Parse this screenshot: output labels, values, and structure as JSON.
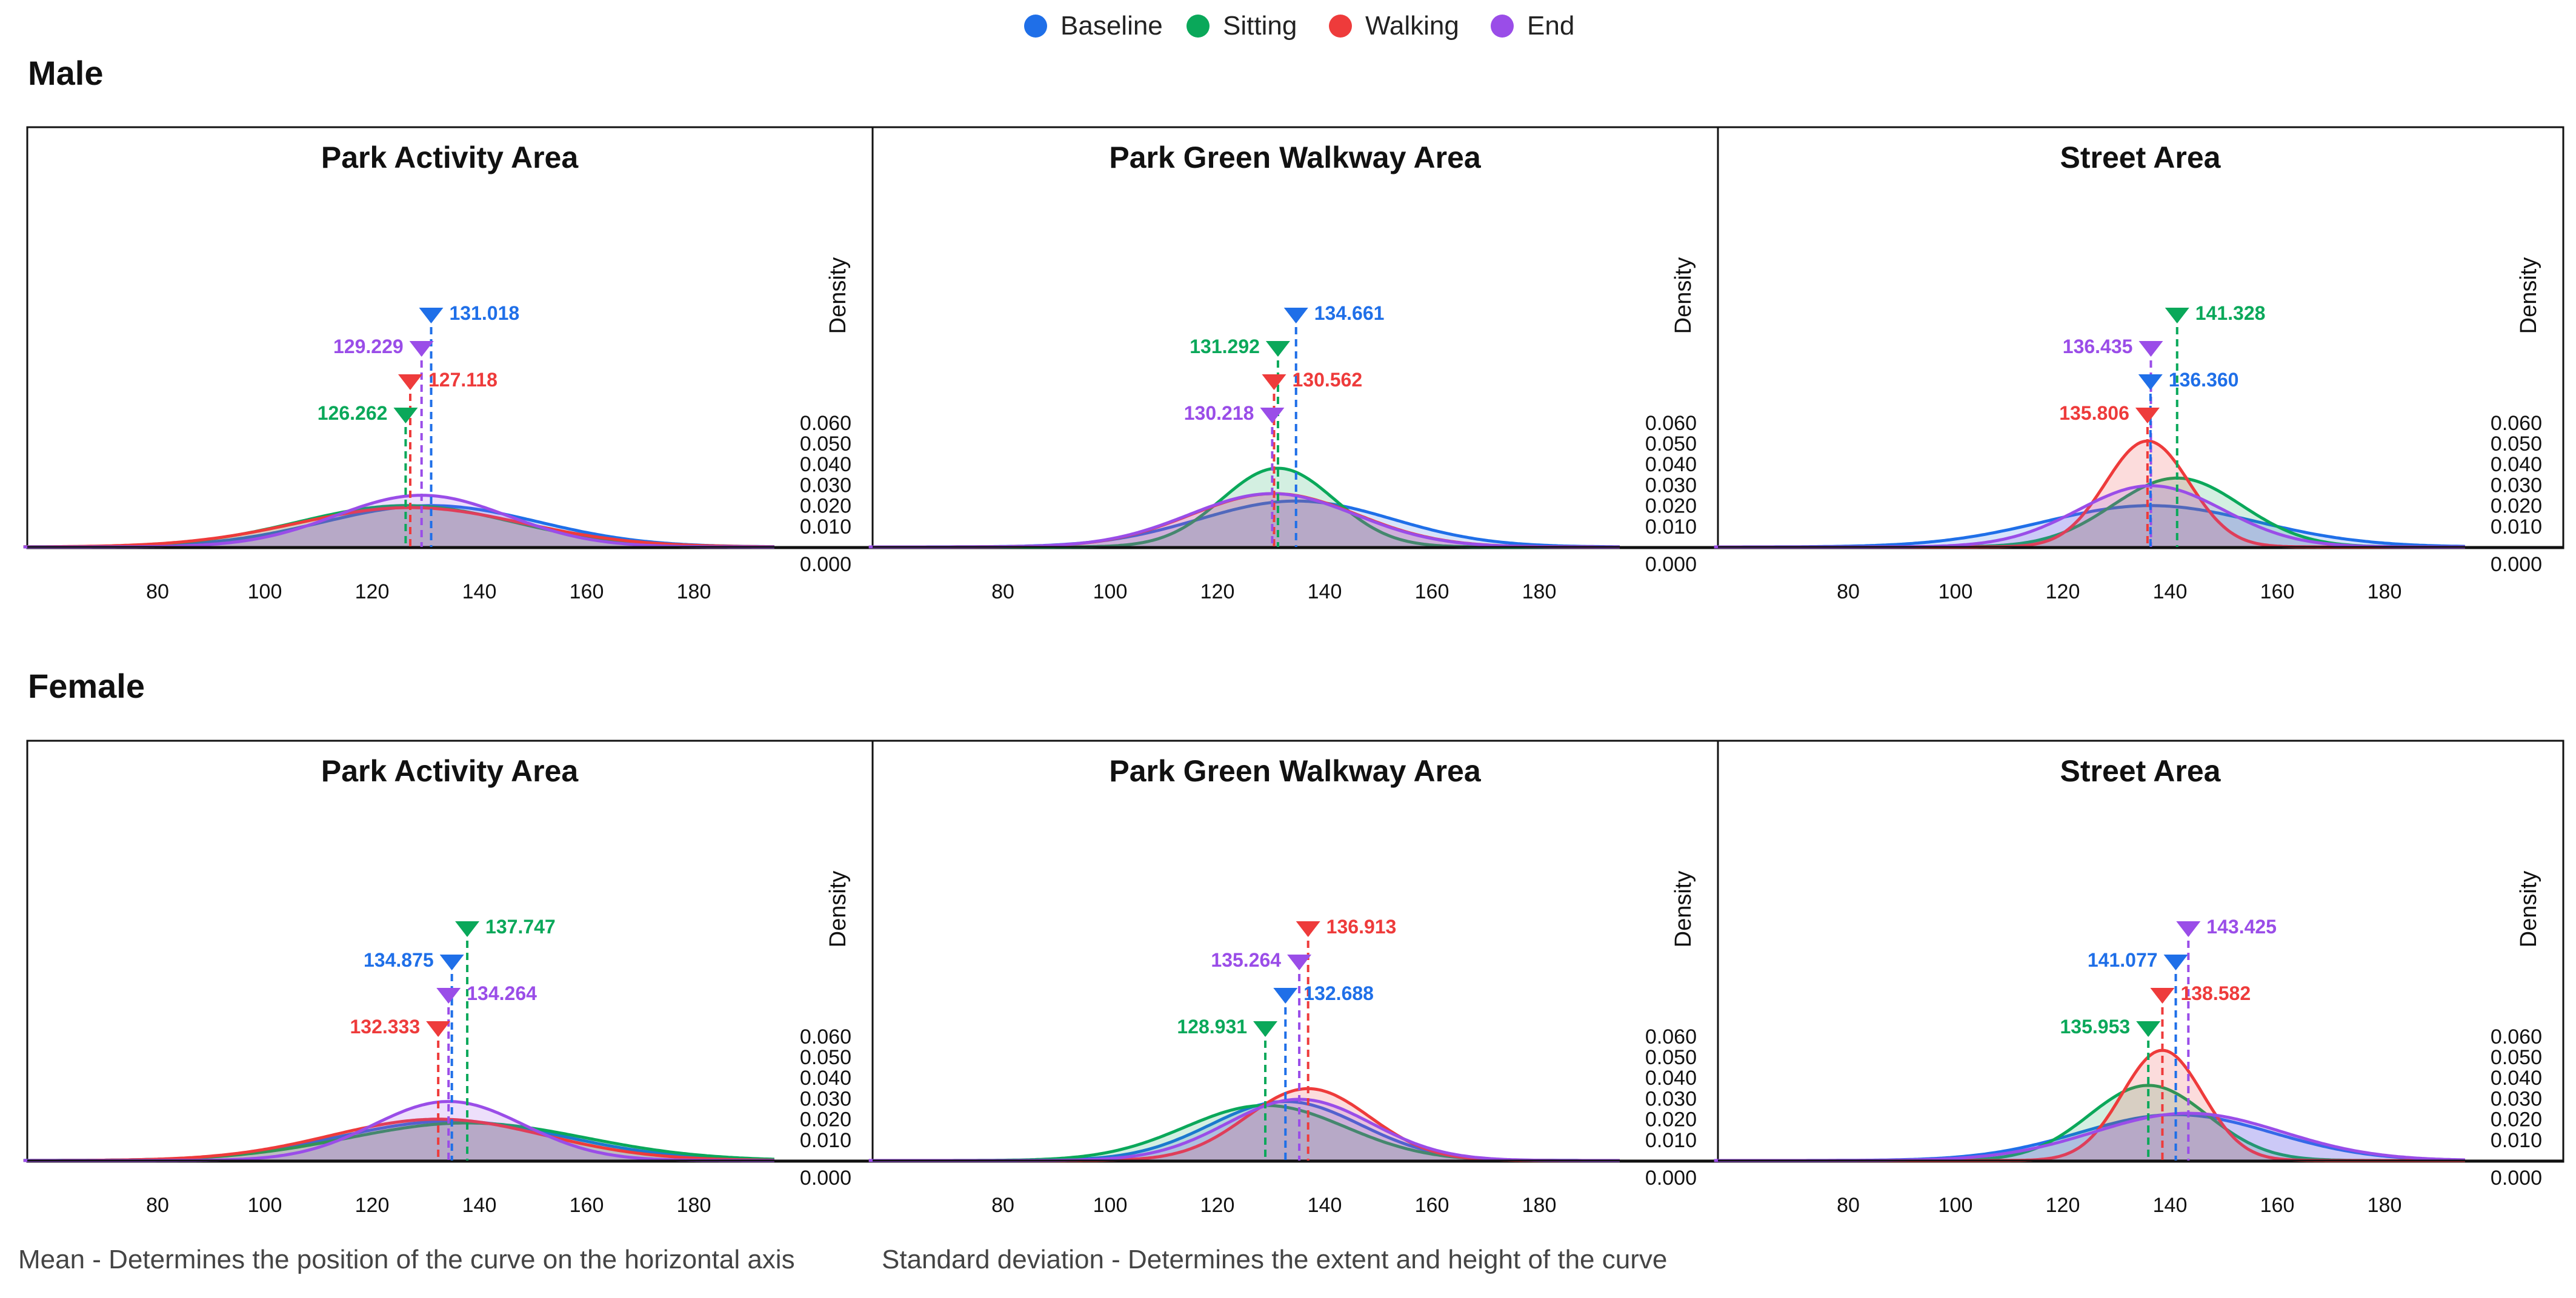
{
  "legend": [
    {
      "name": "Baseline",
      "color": "#1f6fe8"
    },
    {
      "name": "Sitting",
      "color": "#0aa85a"
    },
    {
      "name": "Walking",
      "color": "#ee3b3b"
    },
    {
      "name": "End",
      "color": "#9a4de8"
    }
  ],
  "rows": [
    {
      "label": "Male"
    },
    {
      "label": "Female"
    }
  ],
  "footer": {
    "left": "Mean - Determines the position of the curve on the horizontal axis",
    "right": "Standard deviation - Determines the extent and height of the curve"
  },
  "chart_data": [
    {
      "type": "area",
      "group": "Male",
      "title": "Park Activity Area",
      "ylabel": "Density",
      "xticks": [
        80,
        100,
        120,
        140,
        160,
        180
      ],
      "yticks": [
        "0.000",
        "0.010",
        "0.020",
        "0.030",
        "0.040",
        "0.050",
        "0.060"
      ],
      "xlim": [
        55,
        195
      ],
      "ylim": [
        0,
        0.18
      ],
      "series": [
        {
          "name": "Baseline",
          "mean": 131.018,
          "mean_label": "131.018",
          "sd": 20,
          "color": "#1f6fe8"
        },
        {
          "name": "Sitting",
          "mean": 126.262,
          "mean_label": "126.262",
          "sd": 20,
          "color": "#0aa85a"
        },
        {
          "name": "Walking",
          "mean": 127.118,
          "mean_label": "127.118",
          "sd": 21,
          "color": "#ee3b3b"
        },
        {
          "name": "End",
          "mean": 129.229,
          "mean_label": "129.229",
          "sd": 16,
          "color": "#9a4de8"
        }
      ]
    },
    {
      "type": "area",
      "group": "Male",
      "title": "Park Green Walkway Area",
      "ylabel": "Density",
      "xticks": [
        80,
        100,
        120,
        140,
        160,
        180
      ],
      "yticks": [
        "0.000",
        "0.010",
        "0.020",
        "0.030",
        "0.040",
        "0.050",
        "0.060"
      ],
      "xlim": [
        55,
        195
      ],
      "ylim": [
        0,
        0.18
      ],
      "series": [
        {
          "name": "Baseline",
          "mean": 134.661,
          "mean_label": "134.661",
          "sd": 18,
          "color": "#1f6fe8"
        },
        {
          "name": "Sitting",
          "mean": 131.292,
          "mean_label": "131.292",
          "sd": 10.5,
          "color": "#0aa85a"
        },
        {
          "name": "Walking",
          "mean": 130.562,
          "mean_label": "130.562",
          "sd": 15.5,
          "color": "#ee3b3b"
        },
        {
          "name": "End",
          "mean": 130.218,
          "mean_label": "130.218",
          "sd": 15.5,
          "color": "#9a4de8"
        }
      ]
    },
    {
      "type": "area",
      "group": "Male",
      "title": "Street Area",
      "ylabel": "Density",
      "xticks": [
        80,
        100,
        120,
        140,
        160,
        180
      ],
      "yticks": [
        "0.000",
        "0.010",
        "0.020",
        "0.030",
        "0.040",
        "0.050",
        "0.060"
      ],
      "xlim": [
        55,
        195
      ],
      "ylim": [
        0,
        0.18
      ],
      "series": [
        {
          "name": "Baseline",
          "mean": 136.36,
          "mean_label": "136.360",
          "sd": 20,
          "color": "#1f6fe8"
        },
        {
          "name": "Sitting",
          "mean": 141.328,
          "mean_label": "141.328",
          "sd": 12,
          "color": "#0aa85a"
        },
        {
          "name": "Walking",
          "mean": 135.806,
          "mean_label": "135.806",
          "sd": 7.8,
          "color": "#ee3b3b"
        },
        {
          "name": "End",
          "mean": 136.435,
          "mean_label": "136.435",
          "sd": 13.5,
          "color": "#9a4de8"
        }
      ]
    },
    {
      "type": "area",
      "group": "Female",
      "title": "Park Activity Area",
      "ylabel": "Density",
      "xticks": [
        80,
        100,
        120,
        140,
        160,
        180
      ],
      "yticks": [
        "0.000",
        "0.010",
        "0.020",
        "0.030",
        "0.040",
        "0.050",
        "0.060"
      ],
      "xlim": [
        55,
        195
      ],
      "ylim": [
        0,
        0.18
      ],
      "series": [
        {
          "name": "Baseline",
          "mean": 134.875,
          "mean_label": "134.875",
          "sd": 21,
          "color": "#1f6fe8"
        },
        {
          "name": "Sitting",
          "mean": 137.747,
          "mean_label": "137.747",
          "sd": 22,
          "color": "#0aa85a"
        },
        {
          "name": "Walking",
          "mean": 132.333,
          "mean_label": "132.333",
          "sd": 20,
          "color": "#ee3b3b"
        },
        {
          "name": "End",
          "mean": 134.264,
          "mean_label": "134.264",
          "sd": 14,
          "color": "#9a4de8"
        }
      ]
    },
    {
      "type": "area",
      "group": "Female",
      "title": "Park Green Walkway Area",
      "ylabel": "Density",
      "xticks": [
        80,
        100,
        120,
        140,
        160,
        180
      ],
      "yticks": [
        "0.000",
        "0.010",
        "0.020",
        "0.030",
        "0.040",
        "0.050",
        "0.060"
      ],
      "xlim": [
        55,
        195
      ],
      "ylim": [
        0,
        0.18
      ],
      "series": [
        {
          "name": "Baseline",
          "mean": 132.688,
          "mean_label": "132.688",
          "sd": 14,
          "color": "#1f6fe8"
        },
        {
          "name": "Sitting",
          "mean": 128.931,
          "mean_label": "128.931",
          "sd": 15,
          "color": "#0aa85a"
        },
        {
          "name": "Walking",
          "mean": 136.913,
          "mean_label": "136.913",
          "sd": 11.5,
          "color": "#ee3b3b"
        },
        {
          "name": "End",
          "mean": 135.264,
          "mean_label": "135.264",
          "sd": 13.5,
          "color": "#9a4de8"
        }
      ]
    },
    {
      "type": "area",
      "group": "Female",
      "title": "Street Area",
      "ylabel": "Density",
      "xticks": [
        80,
        100,
        120,
        140,
        160,
        180
      ],
      "yticks": [
        "0.000",
        "0.010",
        "0.020",
        "0.030",
        "0.040",
        "0.050",
        "0.060"
      ],
      "xlim": [
        55,
        195
      ],
      "ylim": [
        0,
        0.18
      ],
      "series": [
        {
          "name": "Baseline",
          "mean": 141.077,
          "mean_label": "141.077",
          "sd": 18,
          "color": "#1f6fe8"
        },
        {
          "name": "Sitting",
          "mean": 135.953,
          "mean_label": "135.953",
          "sd": 11,
          "color": "#0aa85a"
        },
        {
          "name": "Walking",
          "mean": 138.582,
          "mean_label": "138.582",
          "sd": 7.5,
          "color": "#ee3b3b"
        },
        {
          "name": "End",
          "mean": 143.425,
          "mean_label": "143.425",
          "sd": 17.5,
          "color": "#9a4de8"
        }
      ]
    }
  ]
}
